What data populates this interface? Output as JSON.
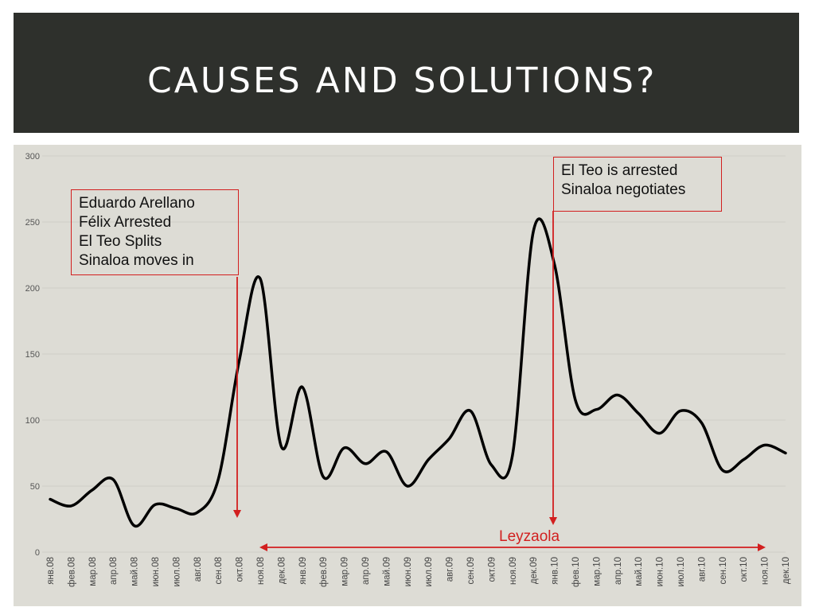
{
  "slide": {
    "title": "CAUSES AND SOLUTIONS?"
  },
  "annotations": {
    "box1": [
      "Eduardo Arellano",
      "Félix Arrested",
      "El Teo Splits",
      "Sinaloa moves in"
    ],
    "box2": [
      "El Teo is arrested",
      "Sinaloa negotiates"
    ],
    "range_label": "Leyzaola"
  },
  "colors": {
    "title_bg": "#2e302c",
    "chart_bg": "#dddcd5",
    "line": "#000000",
    "annotation": "#d21f1f"
  },
  "chart_data": {
    "type": "line",
    "categories": [
      "янв.08",
      "фев.08",
      "мар.08",
      "апр.08",
      "май.08",
      "июн.08",
      "июл.08",
      "авг.08",
      "сен.08",
      "окт.08",
      "ноя.08",
      "дек.08",
      "янв.09",
      "фев.09",
      "мар.09",
      "апр.09",
      "май.09",
      "июн.09",
      "июл.09",
      "авг.09",
      "сен.09",
      "окт.09",
      "ноя.09",
      "дек.09",
      "янв.10",
      "фев.10",
      "мар.10",
      "апр.10",
      "май.10",
      "июн.10",
      "июл.10",
      "авг.10",
      "сен.10",
      "окт.10",
      "ноя.10",
      "дек.10"
    ],
    "values": [
      40,
      35,
      47,
      55,
      20,
      36,
      33,
      30,
      55,
      145,
      207,
      80,
      125,
      57,
      79,
      67,
      76,
      50,
      70,
      86,
      107,
      66,
      73,
      243,
      218,
      115,
      108,
      119,
      105,
      90,
      107,
      98,
      62,
      70,
      81,
      75
    ],
    "yticks": [
      0,
      50,
      100,
      150,
      200,
      250,
      300
    ],
    "ylim": [
      0,
      300
    ],
    "grid": true
  }
}
